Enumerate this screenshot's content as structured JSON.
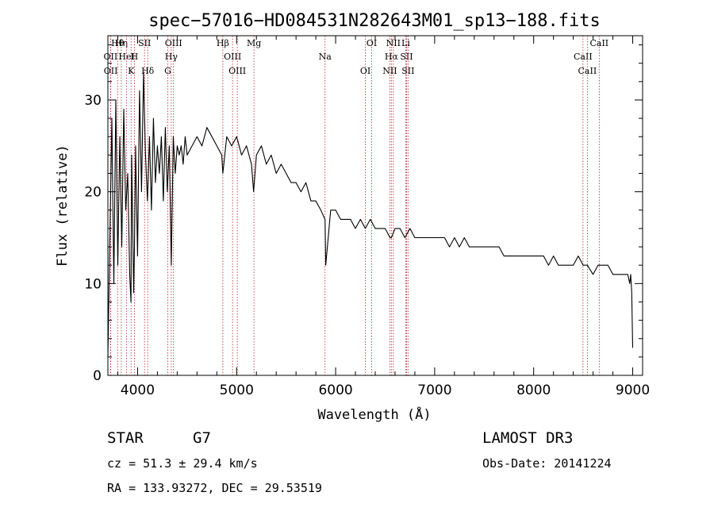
{
  "chart_data": {
    "type": "line",
    "title": "spec−57016−HD084531N282643M01_sp13−188.fits",
    "xlabel": "Wavelength (Å)",
    "ylabel": "Flux (relative)",
    "xlim": [
      3700,
      9100
    ],
    "ylim": [
      0,
      37
    ],
    "x_ticks": [
      4000,
      5000,
      6000,
      7000,
      8000,
      9000
    ],
    "y_ticks": [
      0,
      10,
      20,
      30
    ],
    "x_tick_labels": [
      "4000",
      "5000",
      "6000",
      "7000",
      "8000",
      "9000"
    ],
    "y_tick_labels": [
      "0",
      "10",
      "20",
      "30"
    ],
    "grid": false,
    "series": [
      {
        "name": "flux",
        "color": "#000000",
        "x": [
          3700,
          3720,
          3740,
          3760,
          3780,
          3800,
          3820,
          3840,
          3860,
          3880,
          3900,
          3920,
          3933,
          3940,
          3960,
          3968,
          3980,
          4000,
          4020,
          4040,
          4060,
          4080,
          4100,
          4120,
          4140,
          4160,
          4180,
          4200,
          4220,
          4240,
          4260,
          4280,
          4300,
          4320,
          4340,
          4360,
          4380,
          4400,
          4420,
          4440,
          4460,
          4480,
          4500,
          4550,
          4600,
          4650,
          4700,
          4750,
          4800,
          4850,
          4861,
          4900,
          4950,
          5000,
          5050,
          5100,
          5150,
          5172,
          5200,
          5250,
          5300,
          5350,
          5400,
          5450,
          5500,
          5550,
          5600,
          5650,
          5700,
          5750,
          5800,
          5850,
          5893,
          5900,
          5950,
          6000,
          6050,
          6100,
          6150,
          6200,
          6250,
          6300,
          6350,
          6400,
          6450,
          6500,
          6550,
          6563,
          6600,
          6650,
          6700,
          6750,
          6800,
          6850,
          6900,
          6950,
          7000,
          7050,
          7100,
          7150,
          7200,
          7250,
          7300,
          7350,
          7400,
          7450,
          7500,
          7550,
          7600,
          7650,
          7700,
          7750,
          7800,
          7850,
          7900,
          7950,
          8000,
          8050,
          8100,
          8150,
          8200,
          8250,
          8300,
          8350,
          8400,
          8450,
          8500,
          8542,
          8600,
          8650,
          8700,
          8750,
          8800,
          8850,
          8900,
          8950,
          8970,
          8980,
          8990,
          9000
        ],
        "y": [
          2,
          15,
          28,
          10,
          30,
          12,
          26,
          14,
          29,
          18,
          22,
          11,
          8,
          24,
          9,
          14,
          25,
          13,
          31,
          20,
          33,
          24,
          19,
          26,
          18,
          28,
          21,
          25,
          22,
          26,
          19,
          27,
          20,
          25,
          12,
          26,
          22,
          25,
          24,
          25,
          23,
          26,
          24,
          25,
          26,
          25,
          27,
          26,
          25,
          24,
          22,
          26,
          25,
          26,
          24,
          25,
          23,
          20,
          24,
          25,
          23,
          24,
          22,
          23,
          22,
          21,
          21,
          20,
          21,
          19,
          19,
          18,
          17,
          12,
          18,
          18,
          17,
          17,
          17,
          16,
          17,
          16,
          17,
          16,
          16,
          16,
          15,
          15,
          16,
          16,
          15,
          16,
          15,
          15,
          15,
          15,
          15,
          15,
          15,
          14,
          15,
          14,
          15,
          14,
          14,
          14,
          14,
          14,
          14,
          14,
          13,
          13,
          13,
          13,
          13,
          13,
          13,
          13,
          13,
          12,
          13,
          12,
          12,
          12,
          12,
          13,
          12,
          12,
          11,
          12,
          12,
          12,
          11,
          11,
          11,
          11,
          10,
          11,
          9,
          3
        ]
      }
    ],
    "spectral_lines": [
      {
        "name": "Hθ",
        "wavelength": 3798
      },
      {
        "name": "OII",
        "wavelength": 3727
      },
      {
        "name": "OII",
        "wavelength": 3729
      },
      {
        "name": "Hη",
        "wavelength": 3835
      },
      {
        "name": "HeI",
        "wavelength": 3889
      },
      {
        "name": "K",
        "wavelength": 3934
      },
      {
        "name": "SII",
        "wavelength": 4070
      },
      {
        "name": "H",
        "wavelength": 3968
      },
      {
        "name": "Hδ",
        "wavelength": 4102
      },
      {
        "name": "OIII",
        "wavelength": 4363
      },
      {
        "name": "Hγ",
        "wavelength": 4340
      },
      {
        "name": "G",
        "wavelength": 4305
      },
      {
        "name": "Hβ",
        "wavelength": 4861
      },
      {
        "name": "OIII",
        "wavelength": 4959
      },
      {
        "name": "OIII",
        "wavelength": 5007
      },
      {
        "name": "Mg",
        "wavelength": 5175
      },
      {
        "name": "Na",
        "wavelength": 5893
      },
      {
        "name": "OI",
        "wavelength": 6300
      },
      {
        "name": "OI",
        "wavelength": 6364
      },
      {
        "name": "Hα",
        "wavelength": 6563
      },
      {
        "name": "NII",
        "wavelength": 6548
      },
      {
        "name": "NII",
        "wavelength": 6583
      },
      {
        "name": "SII",
        "wavelength": 6716
      },
      {
        "name": "SII",
        "wavelength": 6731
      },
      {
        "name": "Li",
        "wavelength": 6708
      },
      {
        "name": "CaII",
        "wavelength": 8498
      },
      {
        "name": "CaII",
        "wavelength": 8542
      },
      {
        "name": "CaII",
        "wavelength": 8662
      }
    ],
    "line_color": "#b22222"
  },
  "info": {
    "object_class": "STAR",
    "subclass": "G7",
    "survey": "LAMOST DR3",
    "redshift": "cz = 51.3 ± 29.4 km/s",
    "obs_date": "Obs-Date: 20141224",
    "coords": "RA = 133.93272, DEC =  29.53519"
  }
}
